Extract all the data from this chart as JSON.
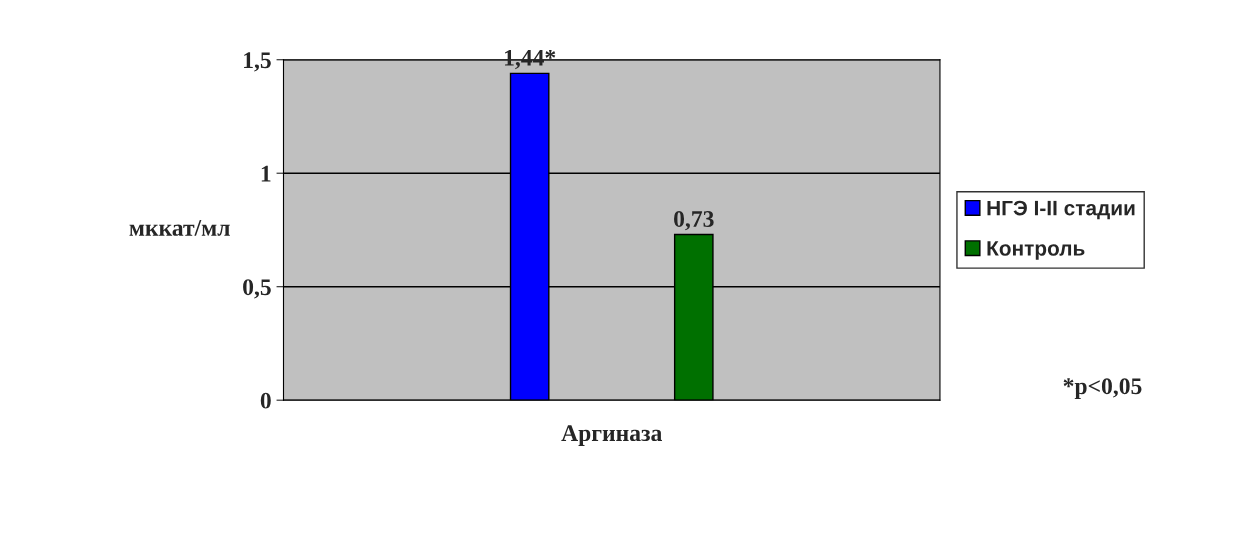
{
  "chart_data": {
    "type": "bar",
    "ylabel": "мккат/мл",
    "categories": [
      "Аргиназа"
    ],
    "series": [
      {
        "name": "НГЭ I-II стадии",
        "color": "#0000ff",
        "values": [
          1.44
        ],
        "value_labels": [
          "1,44*"
        ]
      },
      {
        "name": "Контроль",
        "color": "#007000",
        "values": [
          0.73
        ],
        "value_labels": [
          "0,73"
        ]
      }
    ],
    "ylim": [
      0,
      1.5
    ],
    "yticks": [
      0,
      {
        "value": 0.5,
        "label": "0,5"
      },
      1,
      {
        "value": 1.5,
        "label": "1,5"
      }
    ],
    "grid": "y",
    "legend": "right",
    "annotations": [
      "*p<0,05"
    ]
  }
}
